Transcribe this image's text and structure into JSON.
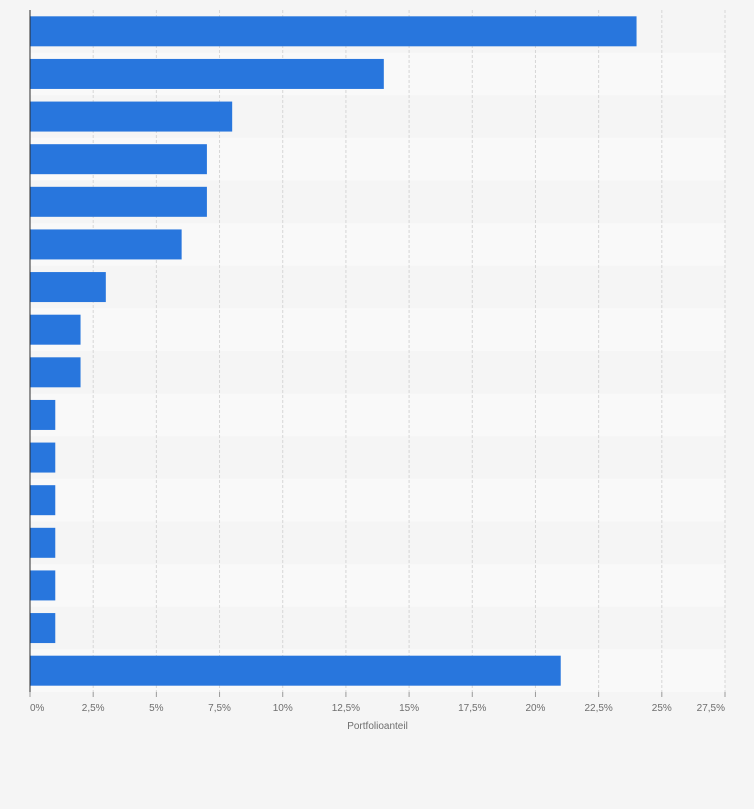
{
  "chart_data": {
    "type": "bar",
    "orientation": "horizontal",
    "title": "",
    "xlabel": "Portfolioanteil",
    "ylabel": "",
    "xlim": [
      0,
      27.5
    ],
    "x_ticks": [
      {
        "value": 0,
        "label": "0%"
      },
      {
        "value": 2.5,
        "label": "2,5%"
      },
      {
        "value": 5,
        "label": "5%"
      },
      {
        "value": 7.5,
        "label": "7,5%"
      },
      {
        "value": 10,
        "label": "10%"
      },
      {
        "value": 12.5,
        "label": "12,5%"
      },
      {
        "value": 15,
        "label": "15%"
      },
      {
        "value": 17.5,
        "label": "17,5%"
      },
      {
        "value": 20,
        "label": "20%"
      },
      {
        "value": 22.5,
        "label": "22,5%"
      },
      {
        "value": 25,
        "label": "25%"
      },
      {
        "value": 27.5,
        "label": "27,5%"
      }
    ],
    "categories": [
      "",
      "",
      "",
      "",
      "",
      "",
      "",
      "",
      "",
      "",
      "",
      "",
      "",
      "",
      "",
      ""
    ],
    "values": [
      24,
      14,
      8,
      7,
      7,
      6,
      3,
      2,
      2,
      1,
      1,
      1,
      1,
      1,
      1,
      21
    ],
    "grid": true,
    "bar_color": "#2876dd",
    "band_colors": [
      "#f5f5f5",
      "#f9f9f9"
    ]
  }
}
